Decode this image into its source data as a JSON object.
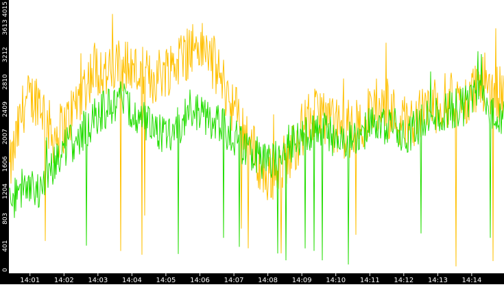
{
  "chart_data": {
    "type": "line",
    "title": "",
    "xlabel": "",
    "ylabel": "",
    "ylim": [
      0,
      4015
    ],
    "y_ticks": [
      "0",
      "401",
      "803",
      "1204",
      "1606",
      "2007",
      "2409",
      "2810",
      "3212",
      "3613",
      "4015"
    ],
    "x_ticks": [
      "14:01",
      "14:02",
      "14:03",
      "14:04",
      "14:05",
      "14:06",
      "14:07",
      "14:08",
      "14:09",
      "14:10",
      "14:11",
      "14:12",
      "14:13",
      "14:14"
    ],
    "x_range": [
      "14:00:24",
      "14:14:57"
    ],
    "grid": false,
    "legend": "none",
    "series": [
      {
        "color": "#ffc000",
        "t": [
          "14:00:24",
          "14:00:50",
          "14:01:15",
          "14:01:40",
          "14:02:05",
          "14:02:30",
          "14:02:55",
          "14:03:20",
          "14:03:45",
          "14:04:10",
          "14:04:35",
          "14:05:00",
          "14:05:25",
          "14:05:50",
          "14:06:15",
          "14:06:40",
          "14:07:05",
          "14:07:30",
          "14:07:55",
          "14:08:20",
          "14:08:45",
          "14:09:10",
          "14:09:35",
          "14:10:00",
          "14:10:25",
          "14:10:50",
          "14:11:15",
          "14:11:40",
          "14:12:05",
          "14:12:30",
          "14:12:55",
          "14:13:20",
          "14:13:45",
          "14:14:10",
          "14:14:35",
          "14:14:57"
        ],
        "values": [
          1500,
          2500,
          2600,
          2000,
          2200,
          2650,
          3050,
          2900,
          3100,
          2950,
          2850,
          3000,
          3150,
          3350,
          3250,
          2800,
          2350,
          1900,
          1400,
          1550,
          1850,
          2250,
          2350,
          2150,
          2050,
          2250,
          2500,
          2350,
          2200,
          2350,
          2450,
          2550,
          2450,
          2800,
          2700,
          2600
        ]
      },
      {
        "color": "#22dd00",
        "t": [
          "14:00:24",
          "14:00:50",
          "14:01:15",
          "14:01:40",
          "14:02:05",
          "14:02:30",
          "14:02:55",
          "14:03:20",
          "14:03:45",
          "14:04:10",
          "14:04:35",
          "14:05:00",
          "14:05:25",
          "14:05:50",
          "14:06:15",
          "14:06:40",
          "14:07:05",
          "14:07:30",
          "14:07:55",
          "14:08:20",
          "14:08:45",
          "14:09:10",
          "14:09:35",
          "14:10:00",
          "14:10:25",
          "14:10:50",
          "14:11:15",
          "14:11:40",
          "14:12:05",
          "14:12:30",
          "14:12:55",
          "14:13:20",
          "14:13:45",
          "14:14:10",
          "14:14:35",
          "14:14:57"
        ],
        "values": [
          1000,
          1300,
          1150,
          1550,
          1850,
          2050,
          2300,
          2450,
          2550,
          2350,
          2100,
          2050,
          2200,
          2400,
          2300,
          2150,
          1950,
          1800,
          1650,
          1750,
          1950,
          2050,
          2100,
          1950,
          1950,
          2100,
          2200,
          2150,
          2050,
          2200,
          2300,
          2400,
          2450,
          2650,
          2400,
          2300
        ]
      }
    ]
  }
}
